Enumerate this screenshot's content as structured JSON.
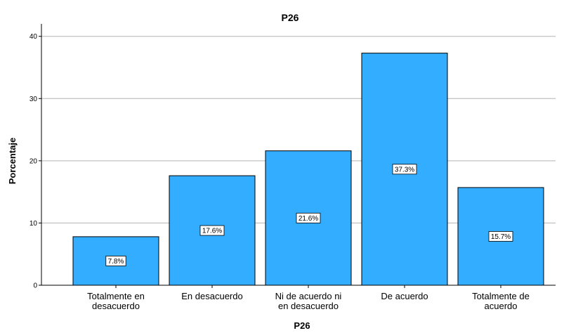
{
  "chart_data": {
    "type": "bar",
    "title": "P26",
    "xlabel": "P26",
    "ylabel": "Porcentaje",
    "ylim": [
      0,
      42
    ],
    "yticks": [
      0,
      10,
      20,
      30,
      40
    ],
    "grid": true,
    "categories": [
      [
        "Totalmente en",
        "desacuerdo"
      ],
      [
        "En desacuerdo"
      ],
      [
        "Ni de acuerdo ni",
        "en desacuerdo"
      ],
      [
        "De acuerdo"
      ],
      [
        "Totalmente de",
        "acuerdo"
      ]
    ],
    "values": [
      7.8,
      17.6,
      21.6,
      37.3,
      15.7
    ],
    "data_labels": [
      "7.8%",
      "17.6%",
      "21.6%",
      "37.3%",
      "15.7%"
    ],
    "bar_color": "#33adff",
    "bar_stroke": "#000000",
    "grid_color": "#b3b3b3"
  }
}
